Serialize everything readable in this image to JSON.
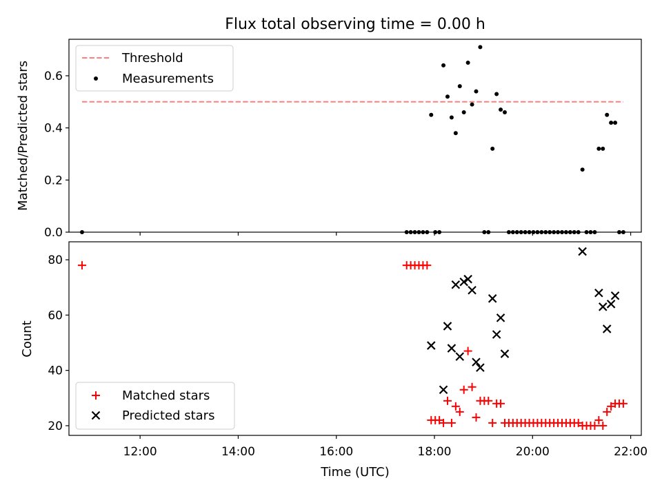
{
  "title": "Flux total observing time = 0.00 h",
  "colors": {
    "threshold": "#ff7f7f",
    "measurements": "#000000",
    "matched": "#ff0000",
    "predicted": "#000000"
  },
  "chart_data": [
    {
      "type": "scatter",
      "ylabel": "Matched/Predicted stars",
      "xlim": [
        "10:33",
        "22:13"
      ],
      "ylim": [
        0,
        0.74
      ],
      "y_ticks": [
        0.0,
        0.2,
        0.4,
        0.6
      ],
      "y_tick_labels": [
        "0.0",
        "0.2",
        "0.4",
        "0.6"
      ],
      "legend": {
        "placement": "top-left",
        "entries": [
          "Threshold",
          "Measurements"
        ]
      },
      "threshold": {
        "name": "Threshold",
        "y": 0.5,
        "x_start": "10:49",
        "x_end": "21:51",
        "style": "dashed"
      },
      "series": [
        {
          "name": "Measurements",
          "x": [
            "10:49",
            "17:26",
            "17:31",
            "17:36",
            "17:41",
            "17:46",
            "17:51",
            "17:56",
            "18:01",
            "18:06",
            "18:11",
            "18:16",
            "18:21",
            "18:26",
            "18:31",
            "18:36",
            "18:41",
            "18:46",
            "18:51",
            "18:56",
            "19:01",
            "19:06",
            "19:11",
            "19:16",
            "19:21",
            "19:26",
            "19:31",
            "19:36",
            "19:41",
            "19:46",
            "19:51",
            "19:56",
            "20:01",
            "20:06",
            "20:11",
            "20:16",
            "20:21",
            "20:26",
            "20:31",
            "20:36",
            "20:41",
            "20:46",
            "20:51",
            "20:56",
            "21:01",
            "21:06",
            "21:11",
            "21:16",
            "21:21",
            "21:26",
            "21:31",
            "21:36",
            "21:41",
            "21:46",
            "21:51"
          ],
          "y": [
            0.0,
            0.0,
            0.0,
            0.0,
            0.0,
            0.0,
            0.0,
            0.45,
            0.0,
            0.0,
            0.64,
            0.52,
            0.44,
            0.38,
            0.56,
            0.46,
            0.65,
            0.49,
            0.54,
            0.71,
            0.0,
            0.0,
            0.32,
            0.53,
            0.47,
            0.46,
            0.0,
            0.0,
            0.0,
            0.0,
            0.0,
            0.0,
            0.0,
            0.0,
            0.0,
            0.0,
            0.0,
            0.0,
            0.0,
            0.0,
            0.0,
            0.0,
            0.0,
            0.0,
            0.24,
            0.0,
            0.0,
            0.0,
            0.32,
            0.32,
            0.45,
            0.42,
            0.42,
            0.0,
            0.0
          ]
        }
      ]
    },
    {
      "type": "scatter",
      "xlabel": "Time (UTC)",
      "ylabel": "Count",
      "xlim": [
        "10:33",
        "22:13"
      ],
      "ylim": [
        16.5,
        86.5
      ],
      "x_ticks": [
        "12:00",
        "14:00",
        "16:00",
        "18:00",
        "20:00",
        "22:00"
      ],
      "y_ticks": [
        20,
        40,
        60,
        80
      ],
      "y_tick_labels": [
        "20",
        "40",
        "60",
        "80"
      ],
      "legend": {
        "placement": "bottom-left",
        "entries": [
          "Matched stars",
          "Predicted stars"
        ]
      },
      "series": [
        {
          "name": "Matched stars",
          "marker": "+",
          "x": [
            "10:49",
            "17:26",
            "17:31",
            "17:36",
            "17:41",
            "17:46",
            "17:51",
            "17:56",
            "18:01",
            "18:06",
            "18:11",
            "18:16",
            "18:21",
            "18:26",
            "18:31",
            "18:36",
            "18:41",
            "18:46",
            "18:51",
            "18:56",
            "19:01",
            "19:06",
            "19:11",
            "19:16",
            "19:21",
            "19:26",
            "19:31",
            "19:36",
            "19:41",
            "19:46",
            "19:51",
            "19:56",
            "20:01",
            "20:06",
            "20:11",
            "20:16",
            "20:21",
            "20:26",
            "20:31",
            "20:36",
            "20:41",
            "20:46",
            "20:51",
            "20:56",
            "21:01",
            "21:06",
            "21:11",
            "21:16",
            "21:21",
            "21:26",
            "21:31",
            "21:36",
            "21:41",
            "21:46",
            "21:51"
          ],
          "y": [
            78,
            78,
            78,
            78,
            78,
            78,
            78,
            22,
            22,
            22,
            21,
            29,
            21,
            27,
            25,
            33,
            47,
            34,
            23,
            29,
            29,
            29,
            21,
            28,
            28,
            21,
            21,
            21,
            21,
            21,
            21,
            21,
            21,
            21,
            21,
            21,
            21,
            21,
            21,
            21,
            21,
            21,
            21,
            21,
            20,
            20,
            20,
            20,
            22,
            20,
            25,
            27,
            28,
            28,
            28
          ]
        },
        {
          "name": "Predicted stars",
          "marker": "x",
          "x": [
            "17:56",
            "18:11",
            "18:16",
            "18:21",
            "18:26",
            "18:31",
            "18:36",
            "18:41",
            "18:46",
            "18:51",
            "18:56",
            "19:11",
            "19:16",
            "19:21",
            "19:26",
            "21:01",
            "21:21",
            "21:26",
            "21:31",
            "21:36",
            "21:41"
          ],
          "y": [
            49,
            33,
            56,
            48,
            71,
            45,
            72,
            73,
            69,
            43,
            41,
            66,
            53,
            59,
            46,
            83,
            68,
            63,
            55,
            64,
            67
          ]
        }
      ]
    }
  ]
}
